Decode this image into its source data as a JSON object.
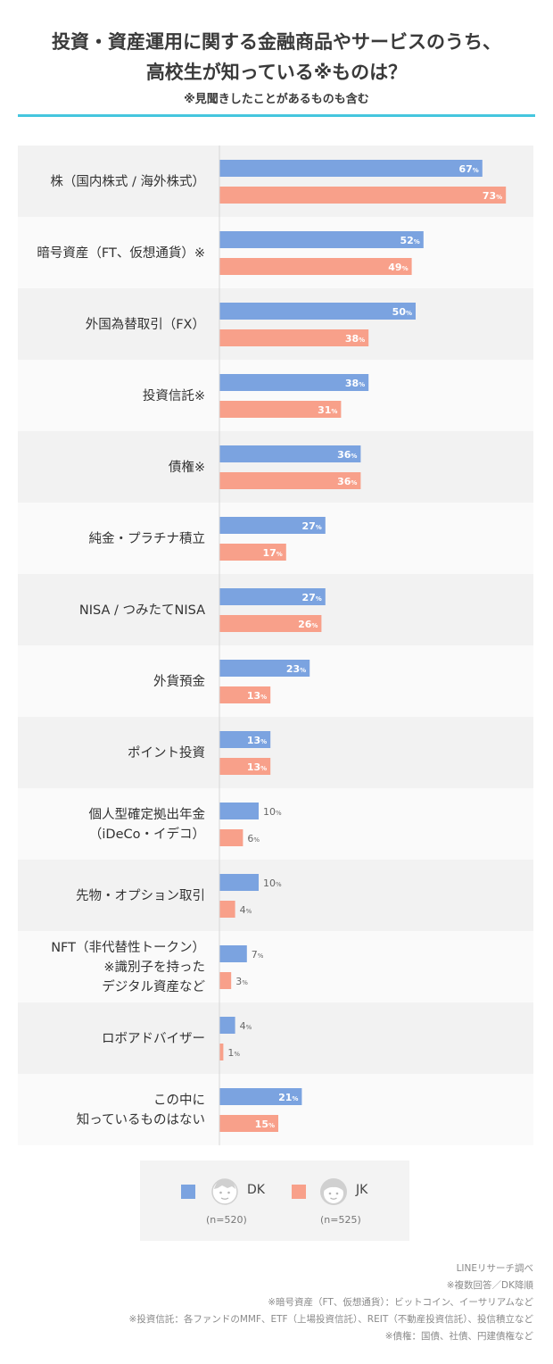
{
  "header": {
    "title_line1": "投資・資産運用に関する金融商品やサービスのうち、",
    "title_line2": "高校生が知っている※ものは？",
    "subtitle": "※見聞きしたことがあるものも含む"
  },
  "colors": {
    "dk": "#7ba3e0",
    "jk": "#f8a08a",
    "accent": "#45c6de",
    "row_dark": "#f2f2f2",
    "row_light": "#fafafa"
  },
  "chart_data": {
    "type": "bar",
    "orientation": "horizontal",
    "unit": "%",
    "categories": [
      [
        "株（国内株式 / 海外株式）"
      ],
      [
        "暗号資産（FT、仮想通貨）※"
      ],
      [
        "外国為替取引（FX）"
      ],
      [
        "投資信託※"
      ],
      [
        "債権※"
      ],
      [
        "純金・プラチナ積立"
      ],
      [
        "NISA / つみたてNISA"
      ],
      [
        "外貨預金"
      ],
      [
        "ポイント投資"
      ],
      [
        "個人型確定拠出年金",
        "（iDeCo・イデコ）"
      ],
      [
        "先物・オプション取引"
      ],
      [
        "NFT（非代替性トークン）",
        "※識別子を持った",
        "デジタル資産など"
      ],
      [
        "ロボアドバイザー"
      ],
      [
        "この中に",
        "知っているものはない"
      ]
    ],
    "series": [
      {
        "name": "DK",
        "n_label": "(n=520)",
        "values": [
          67,
          52,
          50,
          38,
          36,
          27,
          27,
          23,
          13,
          10,
          10,
          7,
          4,
          21
        ]
      },
      {
        "name": "JK",
        "n_label": "(n=525)",
        "values": [
          73,
          49,
          38,
          31,
          36,
          17,
          26,
          13,
          13,
          6,
          4,
          3,
          1,
          15
        ]
      }
    ],
    "xlim": [
      0,
      100
    ]
  },
  "footnotes": [
    "LINEリサーチ調べ",
    "※複数回答／DK降順",
    "※暗号資産（FT、仮想通貨）：ビットコイン、イーサリアムなど",
    "※投資信託：各ファンドのMMF、ETF（上場投資信託）、REIT（不動産投資信託）、投信積立など",
    "※債権：国債、社債、円建債権など"
  ]
}
